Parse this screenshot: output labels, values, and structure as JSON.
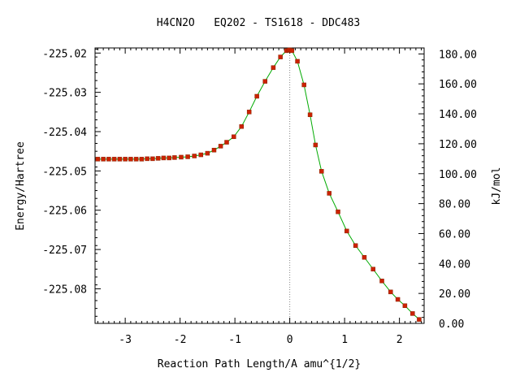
{
  "chart_data": {
    "type": "scatter",
    "title": "H4CN2O   EQ202 - TS1618 - DDC483",
    "xlabel": "Reaction Path Length/A amu^{1/2}",
    "ylabel": "Energy/Hartree",
    "y2label": "kJ/mol",
    "xlim": [
      -3.55,
      2.45
    ],
    "ylim": [
      -225.0888,
      -225.0187
    ],
    "y2lim": [
      0.0,
      184.0
    ],
    "xticks": [
      -3,
      -2,
      -1,
      0,
      1,
      2
    ],
    "xtick_labels": [
      "-3",
      "-2",
      "-1",
      "0",
      "1",
      "2"
    ],
    "yticks": [
      -225.02,
      -225.03,
      -225.04,
      -225.05,
      -225.06,
      -225.07,
      -225.08
    ],
    "ytick_labels": [
      "-225.02",
      "-225.03",
      "-225.04",
      "-225.05",
      "-225.06",
      "-225.07",
      "-225.08"
    ],
    "y2ticks": [
      0,
      20,
      40,
      60,
      80,
      100,
      120,
      140,
      160,
      180
    ],
    "y2tick_labels": [
      "0.00",
      "20.00",
      "40.00",
      "60.00",
      "80.00",
      "100.00",
      "120.00",
      "140.00",
      "160.00",
      "180.00"
    ],
    "ts_marker_x": 0,
    "line_color": "#00aa00",
    "marker_color": "#cc2200",
    "series": [
      {
        "x": [
          -3.5,
          -3.4,
          -3.3,
          -3.2,
          -3.1,
          -3.0,
          -2.9,
          -2.8,
          -2.7,
          -2.6,
          -2.5,
          -2.4,
          -2.3,
          -2.2,
          -2.1,
          -1.98,
          -1.86,
          -1.74,
          -1.62,
          -1.5,
          -1.38,
          -1.26,
          -1.15,
          -1.02,
          -0.88,
          -0.74,
          -0.6,
          -0.45,
          -0.3,
          -0.17,
          -0.06,
          -0.02,
          0.0,
          0.04,
          0.14,
          0.26,
          0.37,
          0.47,
          0.58,
          0.72,
          0.88,
          1.04,
          1.2,
          1.36,
          1.52,
          1.68,
          1.84,
          1.97,
          2.1,
          2.24,
          2.36
        ],
        "y": [
          -225.047,
          -225.047,
          -225.047,
          -225.047,
          -225.047,
          -225.047,
          -225.047,
          -225.047,
          -225.047,
          -225.0469,
          -225.0469,
          -225.0468,
          -225.0467,
          -225.0467,
          -225.0466,
          -225.0465,
          -225.0464,
          -225.0462,
          -225.0459,
          -225.0455,
          -225.0447,
          -225.0437,
          -225.0427,
          -225.0413,
          -225.0387,
          -225.035,
          -225.031,
          -225.0272,
          -225.0237,
          -225.021,
          -225.0194,
          -225.0193,
          -225.0192,
          -225.0194,
          -225.0221,
          -225.0281,
          -225.0357,
          -225.0434,
          -225.0501,
          -225.0557,
          -225.0604,
          -225.0653,
          -225.069,
          -225.072,
          -225.075,
          -225.078,
          -225.0808,
          -225.0827,
          -225.0843,
          -225.0863,
          -225.0878
        ]
      }
    ]
  }
}
